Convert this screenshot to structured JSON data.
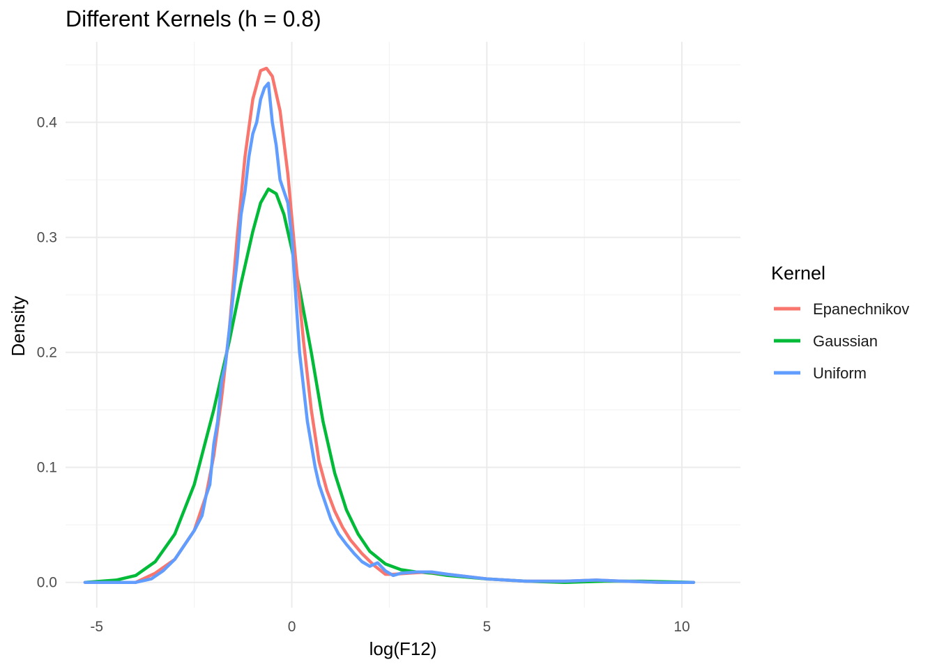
{
  "chart_data": {
    "type": "line",
    "title": "Different Kernels (h = 0.8)",
    "xlabel": "log(F12)",
    "ylabel": "Density",
    "xlim": [
      -5.8,
      11.5
    ],
    "ylim": [
      -0.022,
      0.47
    ],
    "x_ticks": [
      -5,
      0,
      5,
      10
    ],
    "y_ticks": [
      0.0,
      0.1,
      0.2,
      0.3,
      0.4
    ],
    "x_tick_labels": [
      "-5",
      "0",
      "5",
      "10"
    ],
    "y_tick_labels": [
      "0.0",
      "0.1",
      "0.2",
      "0.3",
      "0.4"
    ],
    "grid": true,
    "legend": {
      "title": "Kernel",
      "position": "right"
    },
    "series": [
      {
        "name": "Epanechnikov",
        "color": "#F8766D",
        "x": [
          -5.3,
          -4.5,
          -4.0,
          -3.5,
          -3.0,
          -2.5,
          -2.2,
          -2.0,
          -1.8,
          -1.6,
          -1.4,
          -1.2,
          -1.0,
          -0.8,
          -0.65,
          -0.5,
          -0.3,
          -0.1,
          0.1,
          0.3,
          0.5,
          0.7,
          0.9,
          1.1,
          1.3,
          1.5,
          1.8,
          2.1,
          2.4,
          2.6,
          3.0,
          3.5,
          4.0,
          5.0,
          6.0,
          7.0,
          7.8,
          8.5,
          9.5,
          10.3
        ],
        "values": [
          0.0,
          0.0,
          0.0,
          0.008,
          0.02,
          0.045,
          0.075,
          0.11,
          0.16,
          0.22,
          0.3,
          0.37,
          0.42,
          0.445,
          0.447,
          0.44,
          0.41,
          0.355,
          0.28,
          0.21,
          0.15,
          0.105,
          0.08,
          0.062,
          0.048,
          0.037,
          0.025,
          0.015,
          0.007,
          0.007,
          0.008,
          0.009,
          0.007,
          0.003,
          0.001,
          0.001,
          0.002,
          0.001,
          0.0,
          0.0
        ]
      },
      {
        "name": "Gaussian",
        "color": "#00BA38",
        "x": [
          -5.3,
          -4.5,
          -4.0,
          -3.5,
          -3.0,
          -2.5,
          -2.0,
          -1.6,
          -1.3,
          -1.0,
          -0.8,
          -0.6,
          -0.4,
          -0.2,
          0.0,
          0.2,
          0.5,
          0.8,
          1.1,
          1.4,
          1.7,
          2.0,
          2.4,
          2.8,
          3.2,
          3.6,
          4.0,
          5.0,
          6.0,
          7.0,
          8.0,
          9.0,
          10.3
        ],
        "values": [
          0.0,
          0.002,
          0.006,
          0.018,
          0.042,
          0.085,
          0.15,
          0.21,
          0.26,
          0.305,
          0.33,
          0.342,
          0.338,
          0.32,
          0.29,
          0.255,
          0.2,
          0.14,
          0.095,
          0.063,
          0.042,
          0.027,
          0.016,
          0.011,
          0.009,
          0.008,
          0.006,
          0.003,
          0.001,
          0.0,
          0.001,
          0.001,
          0.0
        ]
      },
      {
        "name": "Uniform",
        "color": "#619CFF",
        "x": [
          -5.3,
          -4.5,
          -4.0,
          -3.6,
          -3.3,
          -3.0,
          -2.7,
          -2.5,
          -2.3,
          -2.2,
          -2.1,
          -2.0,
          -1.9,
          -1.8,
          -1.7,
          -1.6,
          -1.5,
          -1.4,
          -1.3,
          -1.2,
          -1.1,
          -1.0,
          -0.9,
          -0.8,
          -0.7,
          -0.6,
          -0.5,
          -0.4,
          -0.3,
          -0.2,
          -0.1,
          0.0,
          0.1,
          0.2,
          0.3,
          0.4,
          0.5,
          0.6,
          0.7,
          0.8,
          0.9,
          1.0,
          1.2,
          1.4,
          1.6,
          1.8,
          2.0,
          2.2,
          2.4,
          2.6,
          2.8,
          3.2,
          3.6,
          4.0,
          5.0,
          6.0,
          7.0,
          7.8,
          8.5,
          9.5,
          10.3
        ],
        "values": [
          0.0,
          0.0,
          0.0,
          0.003,
          0.01,
          0.02,
          0.035,
          0.045,
          0.058,
          0.075,
          0.085,
          0.12,
          0.14,
          0.175,
          0.19,
          0.22,
          0.25,
          0.28,
          0.32,
          0.34,
          0.37,
          0.39,
          0.4,
          0.42,
          0.43,
          0.434,
          0.4,
          0.38,
          0.35,
          0.34,
          0.33,
          0.3,
          0.25,
          0.2,
          0.17,
          0.14,
          0.12,
          0.1,
          0.085,
          0.075,
          0.065,
          0.055,
          0.042,
          0.033,
          0.025,
          0.018,
          0.014,
          0.017,
          0.01,
          0.006,
          0.008,
          0.009,
          0.009,
          0.007,
          0.003,
          0.001,
          0.001,
          0.002,
          0.001,
          0.0,
          0.0
        ]
      }
    ]
  }
}
